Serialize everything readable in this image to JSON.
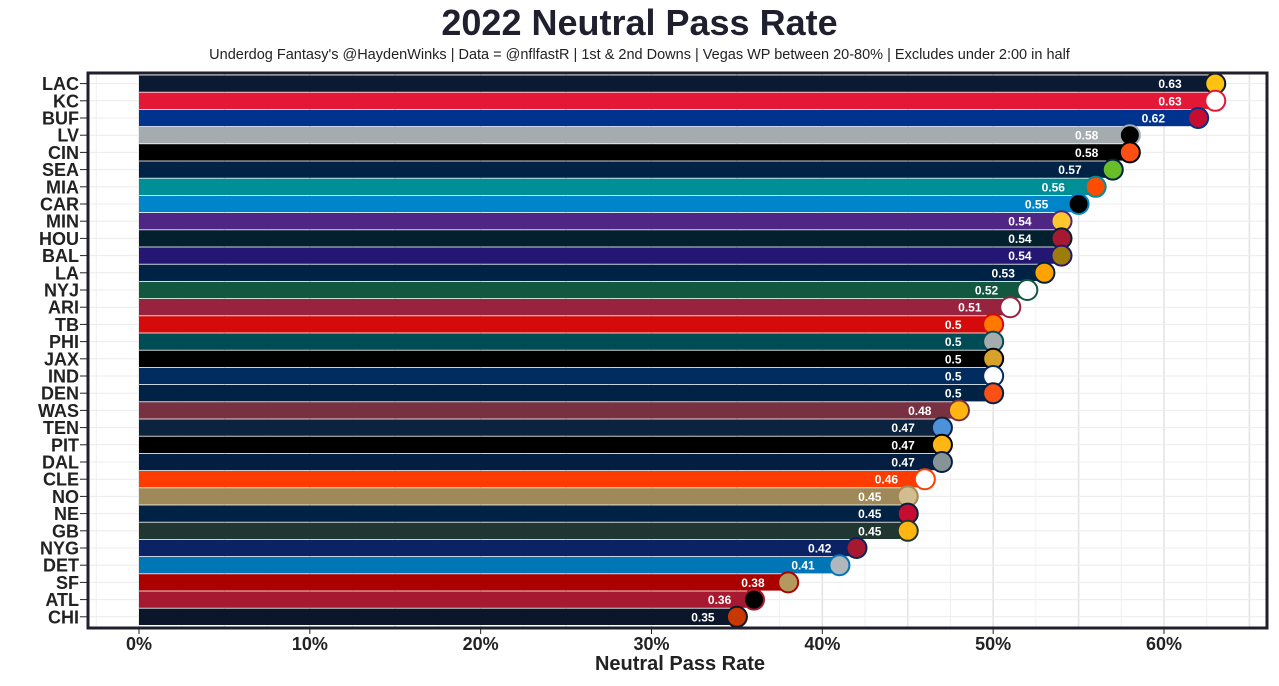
{
  "chart_data": {
    "type": "bar",
    "orientation": "horizontal",
    "title": "2022 Neutral Pass Rate",
    "subtitle": "Underdog Fantasy's @HaydenWinks | Data = @nflfastR | 1st & 2nd Downs | Vegas WP between 20-80% | Excludes under 2:00 in half",
    "xlabel": "Neutral Pass Rate",
    "xlim": [
      -0.03,
      0.66
    ],
    "xticks": [
      {
        "value": 0,
        "label": "0%"
      },
      {
        "value": 0.1,
        "label": "10%"
      },
      {
        "value": 0.2,
        "label": "20%"
      },
      {
        "value": 0.3,
        "label": "30%"
      },
      {
        "value": 0.4,
        "label": "40%"
      },
      {
        "value": 0.5,
        "label": "50%"
      },
      {
        "value": 0.6,
        "label": "60%"
      }
    ],
    "grid": true,
    "categories": [
      "LAC",
      "KC",
      "BUF",
      "LV",
      "CIN",
      "SEA",
      "MIA",
      "CAR",
      "MIN",
      "HOU",
      "BAL",
      "LA",
      "NYJ",
      "ARI",
      "TB",
      "PHI",
      "JAX",
      "IND",
      "DEN",
      "WAS",
      "TEN",
      "PIT",
      "DAL",
      "CLE",
      "NO",
      "NE",
      "GB",
      "NYG",
      "DET",
      "SF",
      "ATL",
      "CHI"
    ],
    "values": [
      0.63,
      0.63,
      0.62,
      0.58,
      0.58,
      0.57,
      0.56,
      0.55,
      0.54,
      0.54,
      0.54,
      0.53,
      0.52,
      0.51,
      0.5,
      0.5,
      0.5,
      0.5,
      0.5,
      0.48,
      0.47,
      0.47,
      0.47,
      0.46,
      0.45,
      0.45,
      0.45,
      0.42,
      0.41,
      0.38,
      0.36,
      0.35
    ],
    "data_labels": [
      "0.63",
      "0.63",
      "0.62",
      "0.58",
      "0.58",
      "0.57",
      "0.56",
      "0.55",
      "0.54",
      "0.54",
      "0.54",
      "0.53",
      "0.52",
      "0.51",
      "0.5",
      "0.5",
      "0.5",
      "0.5",
      "0.5",
      "0.48",
      "0.47",
      "0.47",
      "0.47",
      "0.46",
      "0.45",
      "0.45",
      "0.45",
      "0.42",
      "0.41",
      "0.38",
      "0.36",
      "0.35"
    ],
    "colors": [
      "#0a1a33",
      "#e31837",
      "#00338d",
      "#a5acaf",
      "#000000",
      "#002244",
      "#008e97",
      "#0085ca",
      "#4f2683",
      "#03202f",
      "#241773",
      "#002244",
      "#125740",
      "#97233f",
      "#d50a0a",
      "#004c54",
      "#000000",
      "#002c5f",
      "#002244",
      "#773141",
      "#0c2340",
      "#000000",
      "#041e42",
      "#ff3c00",
      "#9f8958",
      "#002244",
      "#203731",
      "#0b2265",
      "#0076b6",
      "#aa0000",
      "#a71930",
      "#0b162a"
    ],
    "logo_colors": [
      "#ffc20e",
      "#ffffff",
      "#c60c30",
      "#000000",
      "#fb4f14",
      "#69be28",
      "#fc4c02",
      "#000000",
      "#ffc62f",
      "#a71930",
      "#9e7c0c",
      "#ffa300",
      "#ffffff",
      "#ffffff",
      "#ff7900",
      "#a5acaf",
      "#d7a22a",
      "#ffffff",
      "#fb4f14",
      "#ffb612",
      "#4b92db",
      "#ffb612",
      "#869397",
      "#ffffff",
      "#d3bc8d",
      "#c60c30",
      "#ffb612",
      "#a71930",
      "#b0b7bc",
      "#b3995d",
      "#000000",
      "#c83803"
    ]
  }
}
